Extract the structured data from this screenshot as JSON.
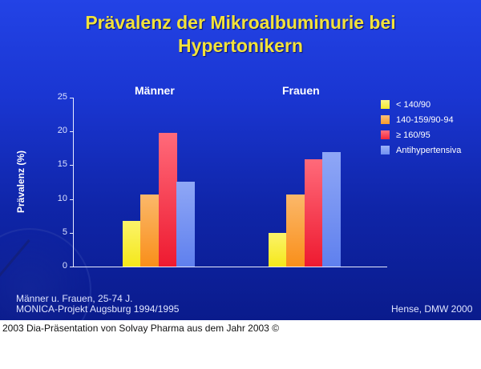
{
  "slide": {
    "title_line1": "Prävalenz der Mikroalbuminurie bei",
    "title_line2": "Hypertonikern",
    "ylabel": "Prävalenz (%)",
    "groups": [
      "Männer",
      "Frauen"
    ],
    "yticks": [
      "0",
      "5",
      "10",
      "15",
      "20",
      "25"
    ],
    "legend": [
      {
        "label": "< 140/90",
        "color": "#f5ea2a"
      },
      {
        "label": "140-159/90-94",
        "color": "#f99a2a"
      },
      {
        "label": "≥ 160/95",
        "color": "#f0283a"
      },
      {
        "label": "Antihypertensiva",
        "color": "#6f8ff0"
      }
    ],
    "note_line1": "Männer u. Frauen, 25-74 J.",
    "note_line2": "MONICA-Projekt Augsburg 1994/1995",
    "source": "Hense, DMW 2000"
  },
  "caption": "2003 Dia-Präsentation von Solvay Pharma aus dem Jahr 2003 ©",
  "chart_data": {
    "type": "bar",
    "title": "Prävalenz der Mikroalbuminurie bei Hypertonikern",
    "xlabel": "",
    "ylabel": "Prävalenz (%)",
    "ylim": [
      0,
      25
    ],
    "yticks": [
      0,
      5,
      10,
      15,
      20,
      25
    ],
    "grid": false,
    "legend_position": "right",
    "categories": [
      "Männer",
      "Frauen"
    ],
    "series": [
      {
        "name": "< 140/90",
        "values": [
          6.7,
          5.0
        ]
      },
      {
        "name": "140-159/90-94",
        "values": [
          10.7,
          10.7
        ]
      },
      {
        "name": "≥ 160/95",
        "values": [
          19.8,
          15.9
        ]
      },
      {
        "name": "Antihypertensiva",
        "values": [
          12.6,
          16.9
        ]
      }
    ],
    "annotations": [
      "Männer u. Frauen, 25-74 J.",
      "MONICA-Projekt Augsburg 1994/1995",
      "Hense, DMW 2000"
    ]
  }
}
